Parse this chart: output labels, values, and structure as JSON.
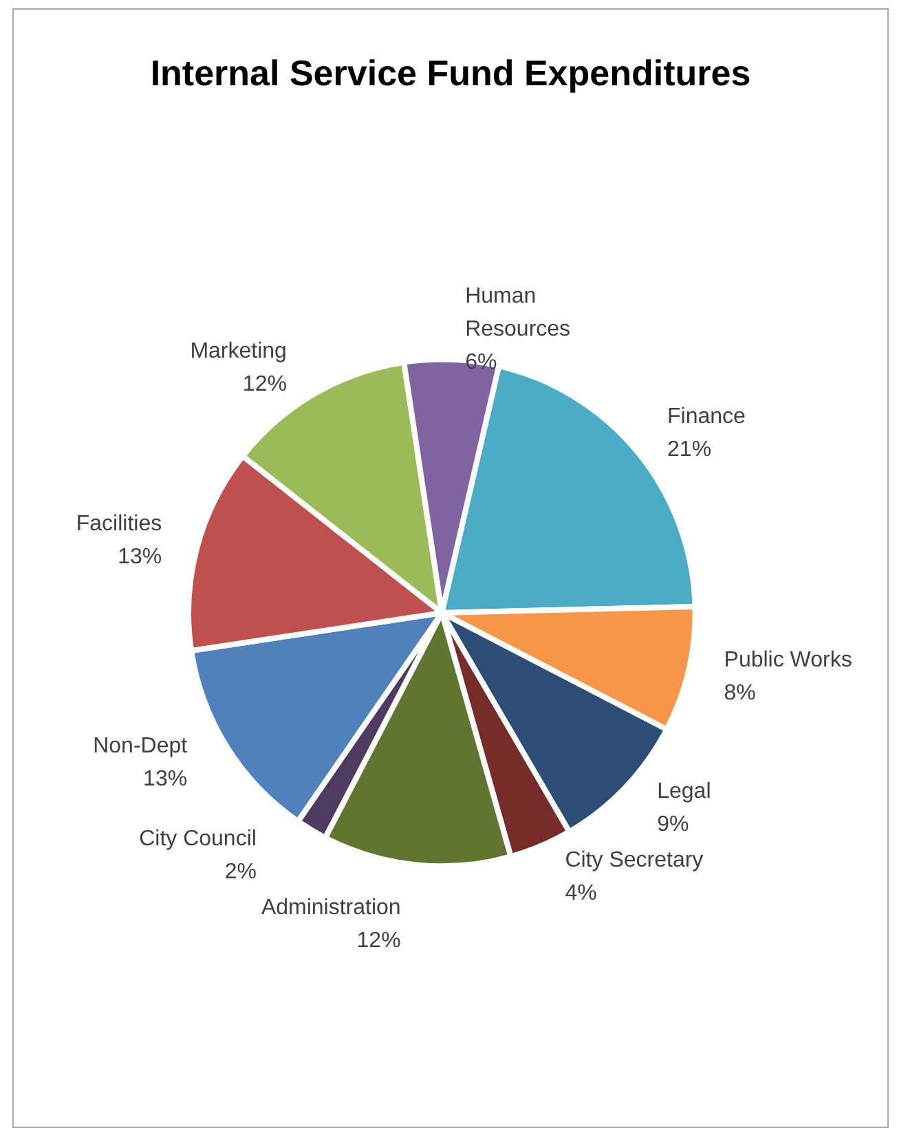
{
  "chart_data": {
    "type": "pie",
    "title": "Internal Service Fund Expenditures",
    "categories": [
      "Finance",
      "Public Works",
      "Legal",
      "City Secretary",
      "Administration",
      "City Council",
      "Non-Dept",
      "Facilities",
      "Marketing",
      "Human Resources"
    ],
    "values": [
      21,
      8,
      9,
      4,
      12,
      2,
      13,
      13,
      12,
      6
    ],
    "value_labels": [
      "21%",
      "8%",
      "9%",
      "4%",
      "12%",
      "2%",
      "13%",
      "13%",
      "12%",
      "6%"
    ],
    "colors": [
      "#4bacc6",
      "#f79646",
      "#2c4d75",
      "#772c2a",
      "#5f7530",
      "#4d3b62",
      "#4f81bd",
      "#c0504d",
      "#9bbb59",
      "#8064a2"
    ],
    "legend": false
  }
}
